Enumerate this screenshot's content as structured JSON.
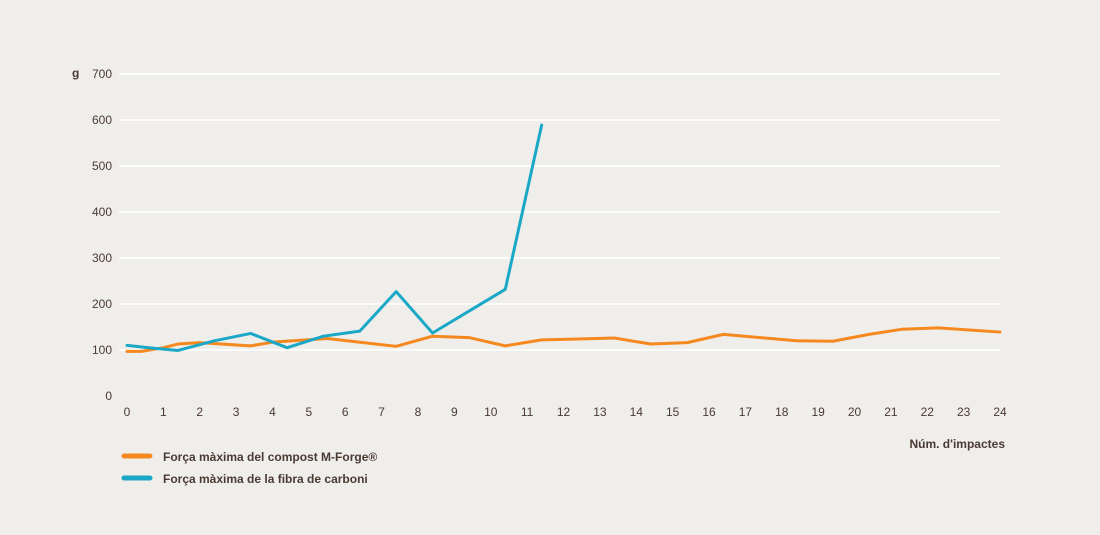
{
  "chart_data": {
    "type": "line",
    "ylabel": "g",
    "xlabel": "Núm. d'impactes",
    "xlim": [
      0,
      24
    ],
    "ylim": [
      0,
      700
    ],
    "x_ticks": [
      0,
      1,
      2,
      3,
      4,
      5,
      6,
      7,
      8,
      9,
      10,
      11,
      12,
      13,
      14,
      15,
      16,
      17,
      18,
      19,
      20,
      21,
      22,
      23,
      24
    ],
    "y_ticks": [
      0,
      100,
      200,
      300,
      400,
      500,
      600,
      700
    ],
    "grid": true,
    "legend_position": "bottom-left",
    "series": [
      {
        "name": "Força màxima del compost M-Forge®",
        "color": "#f5891f",
        "points": [
          [
            0,
            97
          ],
          [
            0.4,
            97
          ],
          [
            1,
            105
          ],
          [
            1.4,
            113
          ],
          [
            2,
            116
          ],
          [
            3.4,
            109
          ],
          [
            4,
            117
          ],
          [
            5.5,
            125
          ],
          [
            7.4,
            108
          ],
          [
            8.4,
            130
          ],
          [
            9.4,
            127
          ],
          [
            10.4,
            109
          ],
          [
            11.4,
            122
          ],
          [
            12.4,
            124
          ],
          [
            13.4,
            126
          ],
          [
            14.4,
            113
          ],
          [
            15.4,
            116
          ],
          [
            16.4,
            134
          ],
          [
            18.4,
            120
          ],
          [
            19.4,
            119
          ],
          [
            20.4,
            134
          ],
          [
            21.3,
            145
          ],
          [
            22.3,
            148
          ],
          [
            24,
            139
          ]
        ]
      },
      {
        "name": "Força màxima de la fibra de carboni",
        "color": "#1ba8c6",
        "points": [
          [
            0,
            110
          ],
          [
            0.6,
            105
          ],
          [
            1.4,
            99
          ],
          [
            2.4,
            120
          ],
          [
            3.4,
            136
          ],
          [
            4.4,
            105
          ],
          [
            5.4,
            130
          ],
          [
            6.4,
            141
          ],
          [
            7.4,
            227
          ],
          [
            8.4,
            137
          ],
          [
            10.4,
            232
          ],
          [
            11.4,
            589
          ]
        ]
      }
    ]
  }
}
